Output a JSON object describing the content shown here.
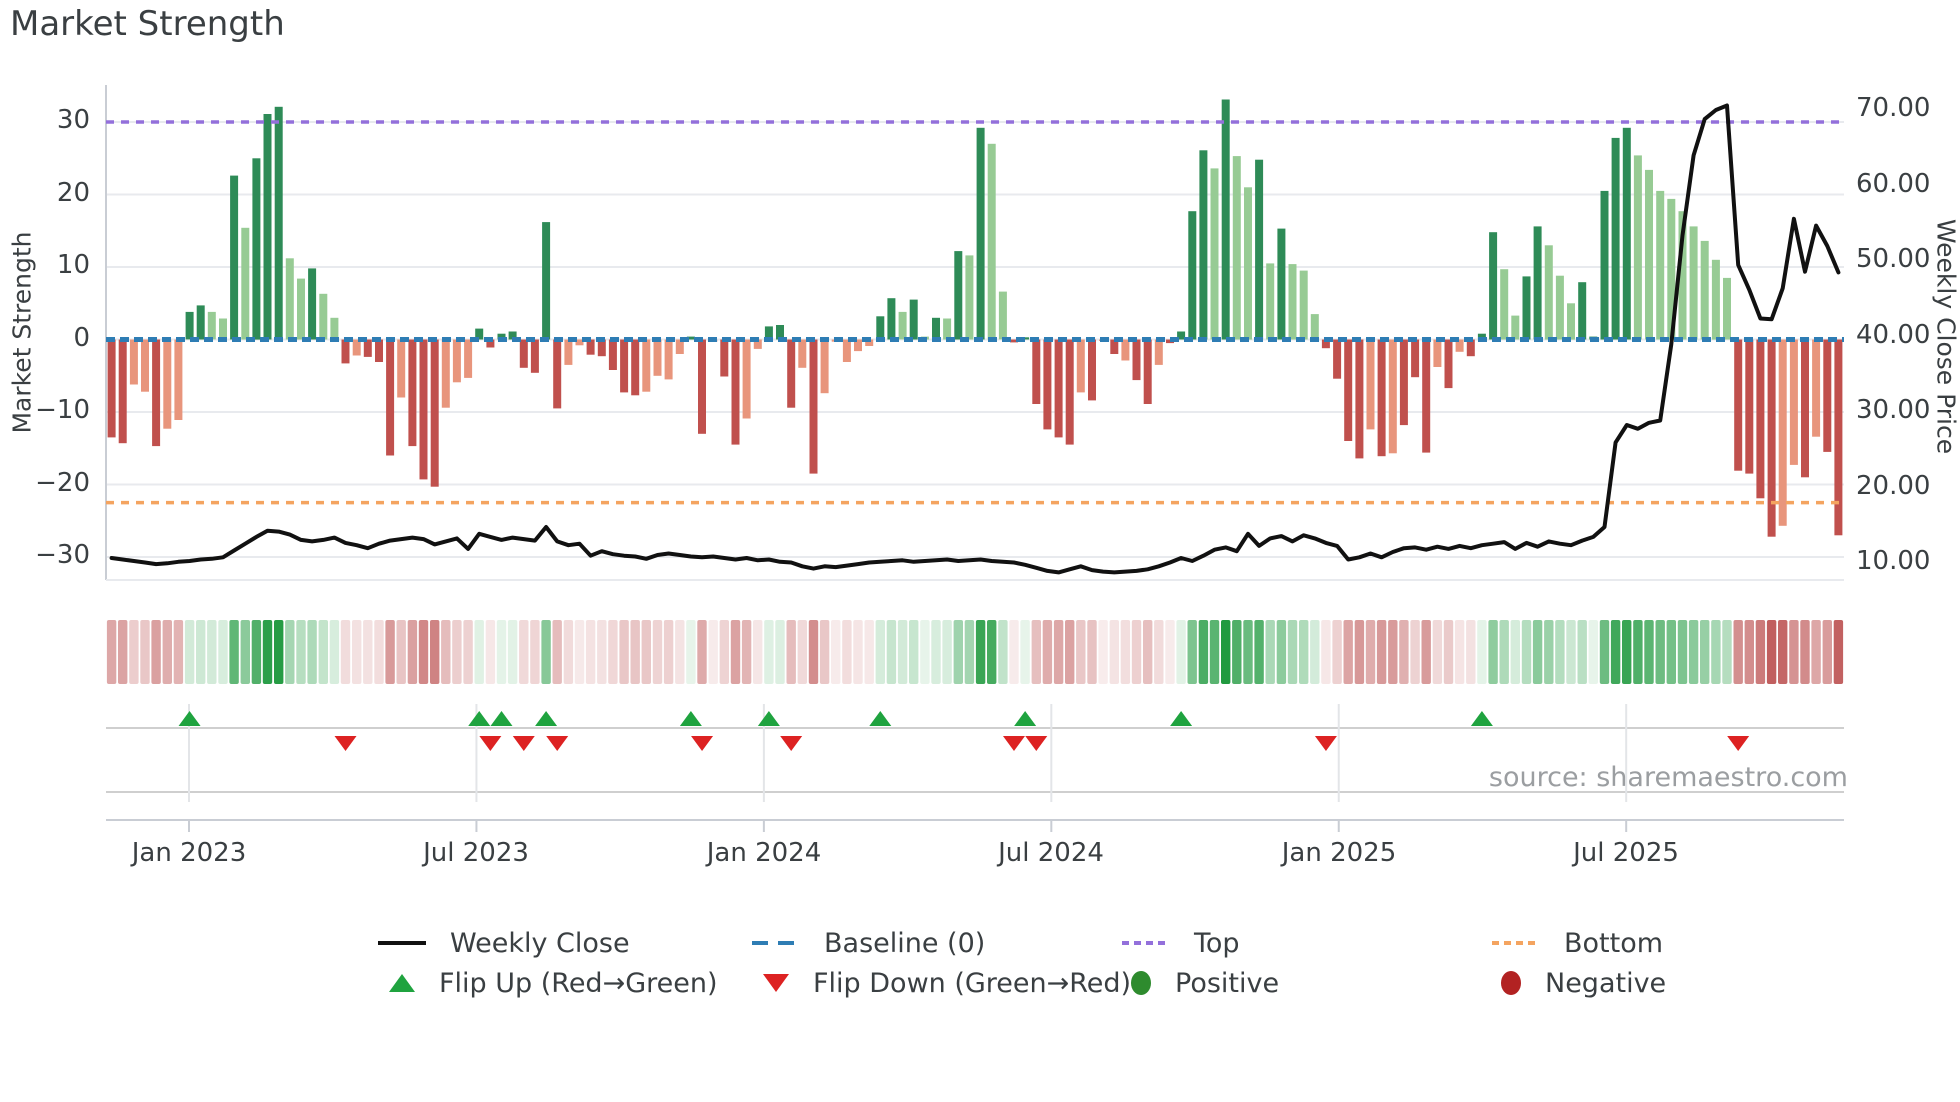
{
  "title": "Market Strength",
  "source_note": "source: sharemaestro.com",
  "axes": {
    "left_label": "Market Strength",
    "right_label": "Weekly Close Price",
    "left_ticks": [
      {
        "v": 30,
        "label": "30"
      },
      {
        "v": 20,
        "label": "20"
      },
      {
        "v": 10,
        "label": "10"
      },
      {
        "v": 0,
        "label": "0"
      },
      {
        "v": -10,
        "label": "−10"
      },
      {
        "v": -20,
        "label": "−20"
      },
      {
        "v": -30,
        "label": "−30"
      }
    ],
    "right_ticks": [
      {
        "p": 70,
        "label": "70.00"
      },
      {
        "p": 60,
        "label": "60.00"
      },
      {
        "p": 50,
        "label": "50.00"
      },
      {
        "p": 40,
        "label": "40.00"
      },
      {
        "p": 30,
        "label": "30.00"
      },
      {
        "p": 20,
        "label": "20.00"
      },
      {
        "p": 10,
        "label": "10.00"
      }
    ],
    "x_ticks": [
      {
        "week": 6.95,
        "label": "Jan 2023"
      },
      {
        "week": 32.75,
        "label": "Jul 2023"
      },
      {
        "week": 58.55,
        "label": "Jan 2024"
      },
      {
        "week": 84.35,
        "label": "Jul 2024"
      },
      {
        "week": 110.15,
        "label": "Jan 2025"
      },
      {
        "week": 135.95,
        "label": "Jul 2025"
      }
    ]
  },
  "legend": {
    "rows": [
      [
        {
          "swatch": "solid-line",
          "label": "Weekly Close"
        },
        {
          "swatch": "dashed-blue",
          "label": "Baseline (0)"
        },
        {
          "swatch": "dotted-purple",
          "label": "Top"
        },
        {
          "swatch": "dotted-orange",
          "label": "Bottom"
        }
      ],
      [
        {
          "swatch": "triangle-up",
          "label": "Flip Up (Red→Green)"
        },
        {
          "swatch": "triangle-down",
          "label": "Flip Down (Green→Red)"
        },
        {
          "swatch": "dot-green",
          "label": "Positive"
        },
        {
          "swatch": "dot-darkred",
          "label": "Negative"
        }
      ]
    ]
  },
  "chart_data": {
    "type": "combo-bar-line-heatmap",
    "x_unit": "week",
    "start_date": "2022-11-14",
    "n_weeks": 156,
    "baseline": 0,
    "top_line": 30,
    "bottom_line": -22.5,
    "left_ylim": [
      -34,
      34
    ],
    "right_ylim_price": [
      7,
      73
    ],
    "strength_values": [
      -13.5,
      -14.3,
      -6.2,
      -7.2,
      -14.7,
      -12.3,
      -11.1,
      3.8,
      4.7,
      3.8,
      2.9,
      22.6,
      15.4,
      25.0,
      31.1,
      32.1,
      11.2,
      8.4,
      9.8,
      6.3,
      3.0,
      -3.3,
      -2.2,
      -2.4,
      -3.1,
      -16.0,
      -8.0,
      -14.7,
      -19.3,
      -20.3,
      -9.4,
      -5.9,
      -5.3,
      1.5,
      -1.1,
      0.8,
      1.1,
      -3.9,
      -4.6,
      16.2,
      -9.5,
      -3.5,
      -0.8,
      -2.1,
      -2.3,
      -4.2,
      -7.3,
      -7.7,
      -7.2,
      -5.0,
      -5.5,
      -2.0,
      0.4,
      -13.0,
      -0.3,
      -5.1,
      -14.5,
      -10.9,
      -1.3,
      1.8,
      2.0,
      -9.4,
      -3.9,
      -18.5,
      -7.4,
      -0.3,
      -3.1,
      -1.6,
      -0.9,
      3.2,
      5.7,
      3.8,
      5.5,
      0.4,
      3.0,
      2.9,
      12.2,
      11.6,
      29.2,
      27.0,
      6.6,
      -0.4,
      0.3,
      -8.9,
      -12.4,
      -13.5,
      -14.5,
      -7.3,
      -8.4,
      -0.2,
      -2.0,
      -2.9,
      -5.6,
      -8.9,
      -3.5,
      -0.5,
      1.1,
      17.7,
      26.1,
      23.6,
      33.1,
      25.3,
      21.0,
      24.8,
      10.5,
      15.3,
      10.4,
      9.5,
      3.5,
      -1.2,
      -5.4,
      -14.0,
      -16.4,
      -12.4,
      -16.1,
      -15.7,
      -11.8,
      -5.2,
      -15.6,
      -3.8,
      -6.7,
      -1.7,
      -2.3,
      0.8,
      14.8,
      9.7,
      3.3,
      8.7,
      15.6,
      13.0,
      8.8,
      5.0,
      7.9,
      0.4,
      20.5,
      27.8,
      29.2,
      25.4,
      23.4,
      20.5,
      19.4,
      17.7,
      15.6,
      13.6,
      11.0,
      8.5,
      -18.1,
      -18.5,
      -21.9,
      -27.2,
      -25.7,
      -17.3,
      -19.0,
      -13.4,
      -15.5,
      -27.0
    ],
    "strength_shades": [
      "dr",
      "dr",
      "lr",
      "lr",
      "dr",
      "lr",
      "lr",
      "dg",
      "dg",
      "lg",
      "lg",
      "dg",
      "lg",
      "dg",
      "dg",
      "dg",
      "lg",
      "lg",
      "dg",
      "lg",
      "lg",
      "dr",
      "lr",
      "dr",
      "dr",
      "dr",
      "lr",
      "dr",
      "dr",
      "dr",
      "lr",
      "lr",
      "lr",
      "dg",
      "dr",
      "dg",
      "dg",
      "dr",
      "dr",
      "dg",
      "dr",
      "lr",
      "lr",
      "dr",
      "dr",
      "dr",
      "dr",
      "dr",
      "lr",
      "lr",
      "lr",
      "lr",
      "dg",
      "dr",
      "dr",
      "dr",
      "dr",
      "lr",
      "lr",
      "dg",
      "dg",
      "dr",
      "lr",
      "dr",
      "lr",
      "lr",
      "lr",
      "lr",
      "lr",
      "dg",
      "dg",
      "lg",
      "dg",
      "lg",
      "dg",
      "lg",
      "dg",
      "lg",
      "dg",
      "lg",
      "lg",
      "dr",
      "dg",
      "dr",
      "dr",
      "dr",
      "dr",
      "lr",
      "dr",
      "lr",
      "dr",
      "lr",
      "dr",
      "dr",
      "lr",
      "dr",
      "dg",
      "dg",
      "dg",
      "lg",
      "dg",
      "lg",
      "lg",
      "dg",
      "lg",
      "dg",
      "lg",
      "lg",
      "lg",
      "dr",
      "dr",
      "dr",
      "dr",
      "lr",
      "dr",
      "lr",
      "dr",
      "dr",
      "dr",
      "lr",
      "dr",
      "lr",
      "dr",
      "dg",
      "dg",
      "lg",
      "lg",
      "dg",
      "dg",
      "lg",
      "lg",
      "lg",
      "dg",
      "dg",
      "dg",
      "dg",
      "dg",
      "lg",
      "lg",
      "lg",
      "lg",
      "lg",
      "lg",
      "lg",
      "lg",
      "lg",
      "dr",
      "dr",
      "dr",
      "dr",
      "lr",
      "lr",
      "dr",
      "lr",
      "dr",
      "dr"
    ],
    "weekly_close_price": [
      10.7,
      10.5,
      10.3,
      10.1,
      9.9,
      10.0,
      10.2,
      10.3,
      10.5,
      10.6,
      10.8,
      11.7,
      12.6,
      13.5,
      14.3,
      14.2,
      13.8,
      13.1,
      12.9,
      13.1,
      13.4,
      12.7,
      12.4,
      12.0,
      12.6,
      13.0,
      13.2,
      13.4,
      13.2,
      12.5,
      12.9,
      13.3,
      11.9,
      13.9,
      13.5,
      13.1,
      13.4,
      13.2,
      13.0,
      14.8,
      12.9,
      12.4,
      12.6,
      11.0,
      11.6,
      11.2,
      11.0,
      10.9,
      10.6,
      11.1,
      11.3,
      11.1,
      10.9,
      10.8,
      10.9,
      10.7,
      10.5,
      10.7,
      10.4,
      10.5,
      10.2,
      10.1,
      9.6,
      9.3,
      9.6,
      9.5,
      9.7,
      9.9,
      10.1,
      10.2,
      10.3,
      10.4,
      10.2,
      10.3,
      10.4,
      10.5,
      10.3,
      10.4,
      10.5,
      10.3,
      10.2,
      10.1,
      9.8,
      9.4,
      9.0,
      8.8,
      9.2,
      9.6,
      9.1,
      8.9,
      8.8,
      8.9,
      9.0,
      9.2,
      9.6,
      10.1,
      10.7,
      10.3,
      11.0,
      11.8,
      12.1,
      11.6,
      13.9,
      12.3,
      13.3,
      13.6,
      12.9,
      13.7,
      13.3,
      12.7,
      12.3,
      10.5,
      10.8,
      11.3,
      10.8,
      11.5,
      12.0,
      12.1,
      11.8,
      12.2,
      11.9,
      12.3,
      12.0,
      12.4,
      12.6,
      12.8,
      11.9,
      12.7,
      12.2,
      12.9,
      12.6,
      12.4,
      13.0,
      13.5,
      14.8,
      26.0,
      28.3,
      27.8,
      28.6,
      28.9,
      39.0,
      53.4,
      64.0,
      68.8,
      70.0,
      70.6,
      49.5,
      46.2,
      42.4,
      42.3,
      46.4,
      55.6,
      48.6,
      54.7,
      52.0,
      48.5
    ],
    "flip_up_weeks": [
      7,
      33,
      35,
      39,
      52,
      59,
      69,
      82,
      96,
      123
    ],
    "flip_down_weeks": [
      21,
      34,
      37,
      40,
      53,
      61,
      81,
      83,
      109,
      146
    ],
    "heatmap": "weekly strength values rendered as red-to-green intensity strip"
  },
  "colors": {
    "bar_dark_green": "#2e8b57",
    "bar_light_green": "#97cb94",
    "bar_dark_red": "#c0504d",
    "bar_light_red": "#e8957c",
    "price_line": "#111111",
    "baseline_blue": "#2e7db4",
    "top_purple": "#9370db",
    "bottom_orange": "#f4a460",
    "flip_up_green": "#1fa33f",
    "flip_down_red": "#dd2222",
    "positive_dot": "#2e8b2e",
    "negative_dot": "#b22222",
    "grid": "#e8eaee",
    "spine": "#c9cdd4",
    "text": "#3a3f42",
    "muted_text": "#9b9ea1"
  }
}
